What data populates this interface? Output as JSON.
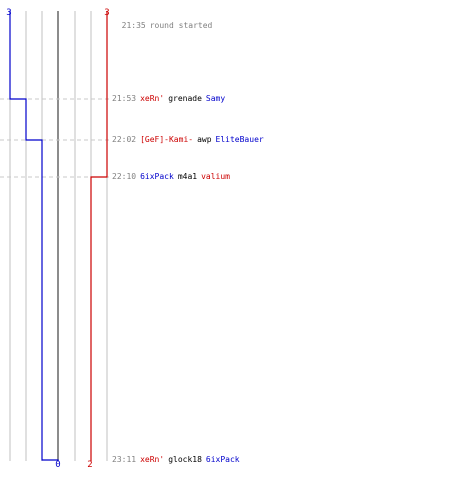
{
  "round": {
    "start_time": "21:35",
    "start_text": "round started",
    "end_time": "23:11"
  },
  "teams": {
    "blue": {
      "color": "#0000cc",
      "start_count": "3",
      "end_count": "0"
    },
    "red": {
      "color": "#cc0000",
      "start_count": "3",
      "end_count": "2"
    }
  },
  "colors": {
    "time": "#808080",
    "grid": "#c0c0c0",
    "center": "#707070",
    "weapon": "#000000"
  },
  "events": [
    {
      "time": "21:53",
      "killer": "xeRn'",
      "killer_team": "red",
      "weapon": "grenade",
      "victim": "Samy",
      "victim_team": "blue",
      "blue_after": 2,
      "red_after": 3
    },
    {
      "time": "22:02",
      "killer": "[GeF]-Kami-",
      "killer_team": "red",
      "weapon": "awp",
      "victim": "EliteBauer",
      "victim_team": "blue",
      "blue_after": 1,
      "red_after": 3
    },
    {
      "time": "22:10",
      "killer": "6ixPack",
      "killer_team": "blue",
      "weapon": "m4a1",
      "victim": "valium",
      "victim_team": "red",
      "blue_after": 1,
      "red_after": 2
    },
    {
      "time": "23:11",
      "killer": "xeRn'",
      "killer_team": "red",
      "weapon": "glock18",
      "victim": "6ixPack",
      "victim_team": "blue",
      "blue_after": 0,
      "red_after": 2
    }
  ]
}
